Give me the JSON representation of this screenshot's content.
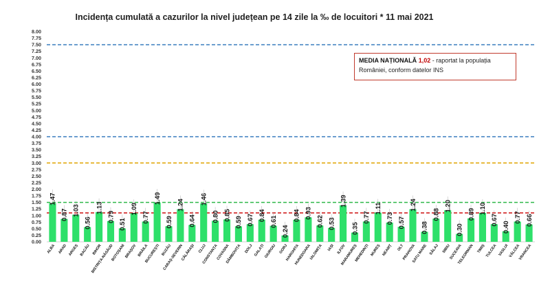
{
  "chart_data": {
    "type": "bar",
    "title": "Incidența cumulată a cazurilor la nivel județean pe 14 zile la ‰ de locuitori *  11 mai 2021",
    "categories": [
      "ALBA",
      "ARAD",
      "ARGEȘ",
      "BACĂU",
      "BIHOR",
      "BISTRIȚA-NĂSĂUD",
      "BOTOȘANI",
      "BRAȘOV",
      "BRĂILA",
      "BUCUREȘTI",
      "BUZĂU",
      "CARAȘ-SEVERIN",
      "CĂLĂRAȘI",
      "CLUJ",
      "CONSTANȚA",
      "COVASNA",
      "DÂMBOVIȚA",
      "DOLJ",
      "GALAȚI",
      "GIURGIU",
      "GORJ",
      "HARGHITA",
      "HUNEDOARA",
      "IALOMIȚA",
      "IAȘI",
      "ILFOV",
      "MARAMUREȘ",
      "MEHEDINȚI",
      "MUREȘ",
      "NEAMȚ",
      "OLT",
      "PRAHOVA",
      "SATU MARE",
      "SĂLAJ",
      "SIBIU",
      "SUCEAVA",
      "TELEORMAN",
      "TIMIȘ",
      "TULCEA",
      "VASLUI",
      "VÂLCEA",
      "VRANCEA"
    ],
    "values": [
      1.47,
      0.87,
      1.03,
      0.56,
      1.13,
      0.79,
      0.51,
      1.09,
      0.77,
      1.49,
      0.59,
      1.24,
      0.64,
      1.46,
      0.8,
      0.85,
      0.59,
      0.67,
      0.84,
      0.61,
      0.24,
      0.84,
      0.93,
      0.62,
      0.53,
      1.39,
      0.35,
      0.77,
      1.11,
      0.73,
      0.57,
      1.24,
      0.38,
      0.88,
      1.2,
      0.3,
      0.89,
      1.1,
      0.67,
      0.4,
      0.77,
      0.66
    ],
    "value_labels": [
      "1.47",
      "0.87",
      "1.03",
      "0.56",
      "1.13",
      "0.79",
      "0.51",
      "1.09",
      "0.77",
      "1.49",
      "0.59",
      "1.24",
      "0.64",
      "1.46",
      "0.80",
      "0.85",
      "0.59",
      "0.67",
      "0.84",
      "0.61",
      "0.24",
      "0.84",
      "0.93",
      "0.62",
      "0.53",
      "1.39",
      "0.35",
      "0.77",
      "1.11",
      "0.73",
      "0.57",
      "1.24",
      "0.38",
      "0.88",
      "1.20",
      "0.30",
      "0.89",
      "1.10",
      "0.67",
      "0.40",
      "0.77",
      "0.66"
    ],
    "ylim": [
      0,
      8
    ],
    "yticks": [
      "0.00",
      "0.25",
      "0.50",
      "0.75",
      "1.00",
      "1.25",
      "1.50",
      "1.75",
      "2.00",
      "2.25",
      "2.50",
      "2.75",
      "3.00",
      "3.25",
      "3.50",
      "3.75",
      "4.00",
      "4.25",
      "4.50",
      "4.75",
      "5.00",
      "5.25",
      "5.50",
      "5.75",
      "6.00",
      "6.25",
      "6.50",
      "6.75",
      "7.00",
      "7.25",
      "7.50",
      "7.75",
      "8.00"
    ],
    "ytick_step": 0.25,
    "reference_lines": [
      {
        "value": 7.5,
        "color": "#3a7dbf",
        "style": "dashed"
      },
      {
        "value": 4.0,
        "color": "#3a7dbf",
        "style": "dashed"
      },
      {
        "value": 3.0,
        "color": "#e0a400",
        "style": "dashed"
      },
      {
        "value": 1.5,
        "color": "#2fb84a",
        "style": "dashed"
      },
      {
        "value": 1.1,
        "color": "#d02020",
        "style": "dashed"
      }
    ],
    "bar_color": "#2ee06a",
    "grid": false,
    "legend": "none"
  },
  "annotation": {
    "heading": "MEDIA NAȚIONALĂ",
    "value": "1,02",
    "text": " - raportat la populația României, conform datelor INS"
  }
}
